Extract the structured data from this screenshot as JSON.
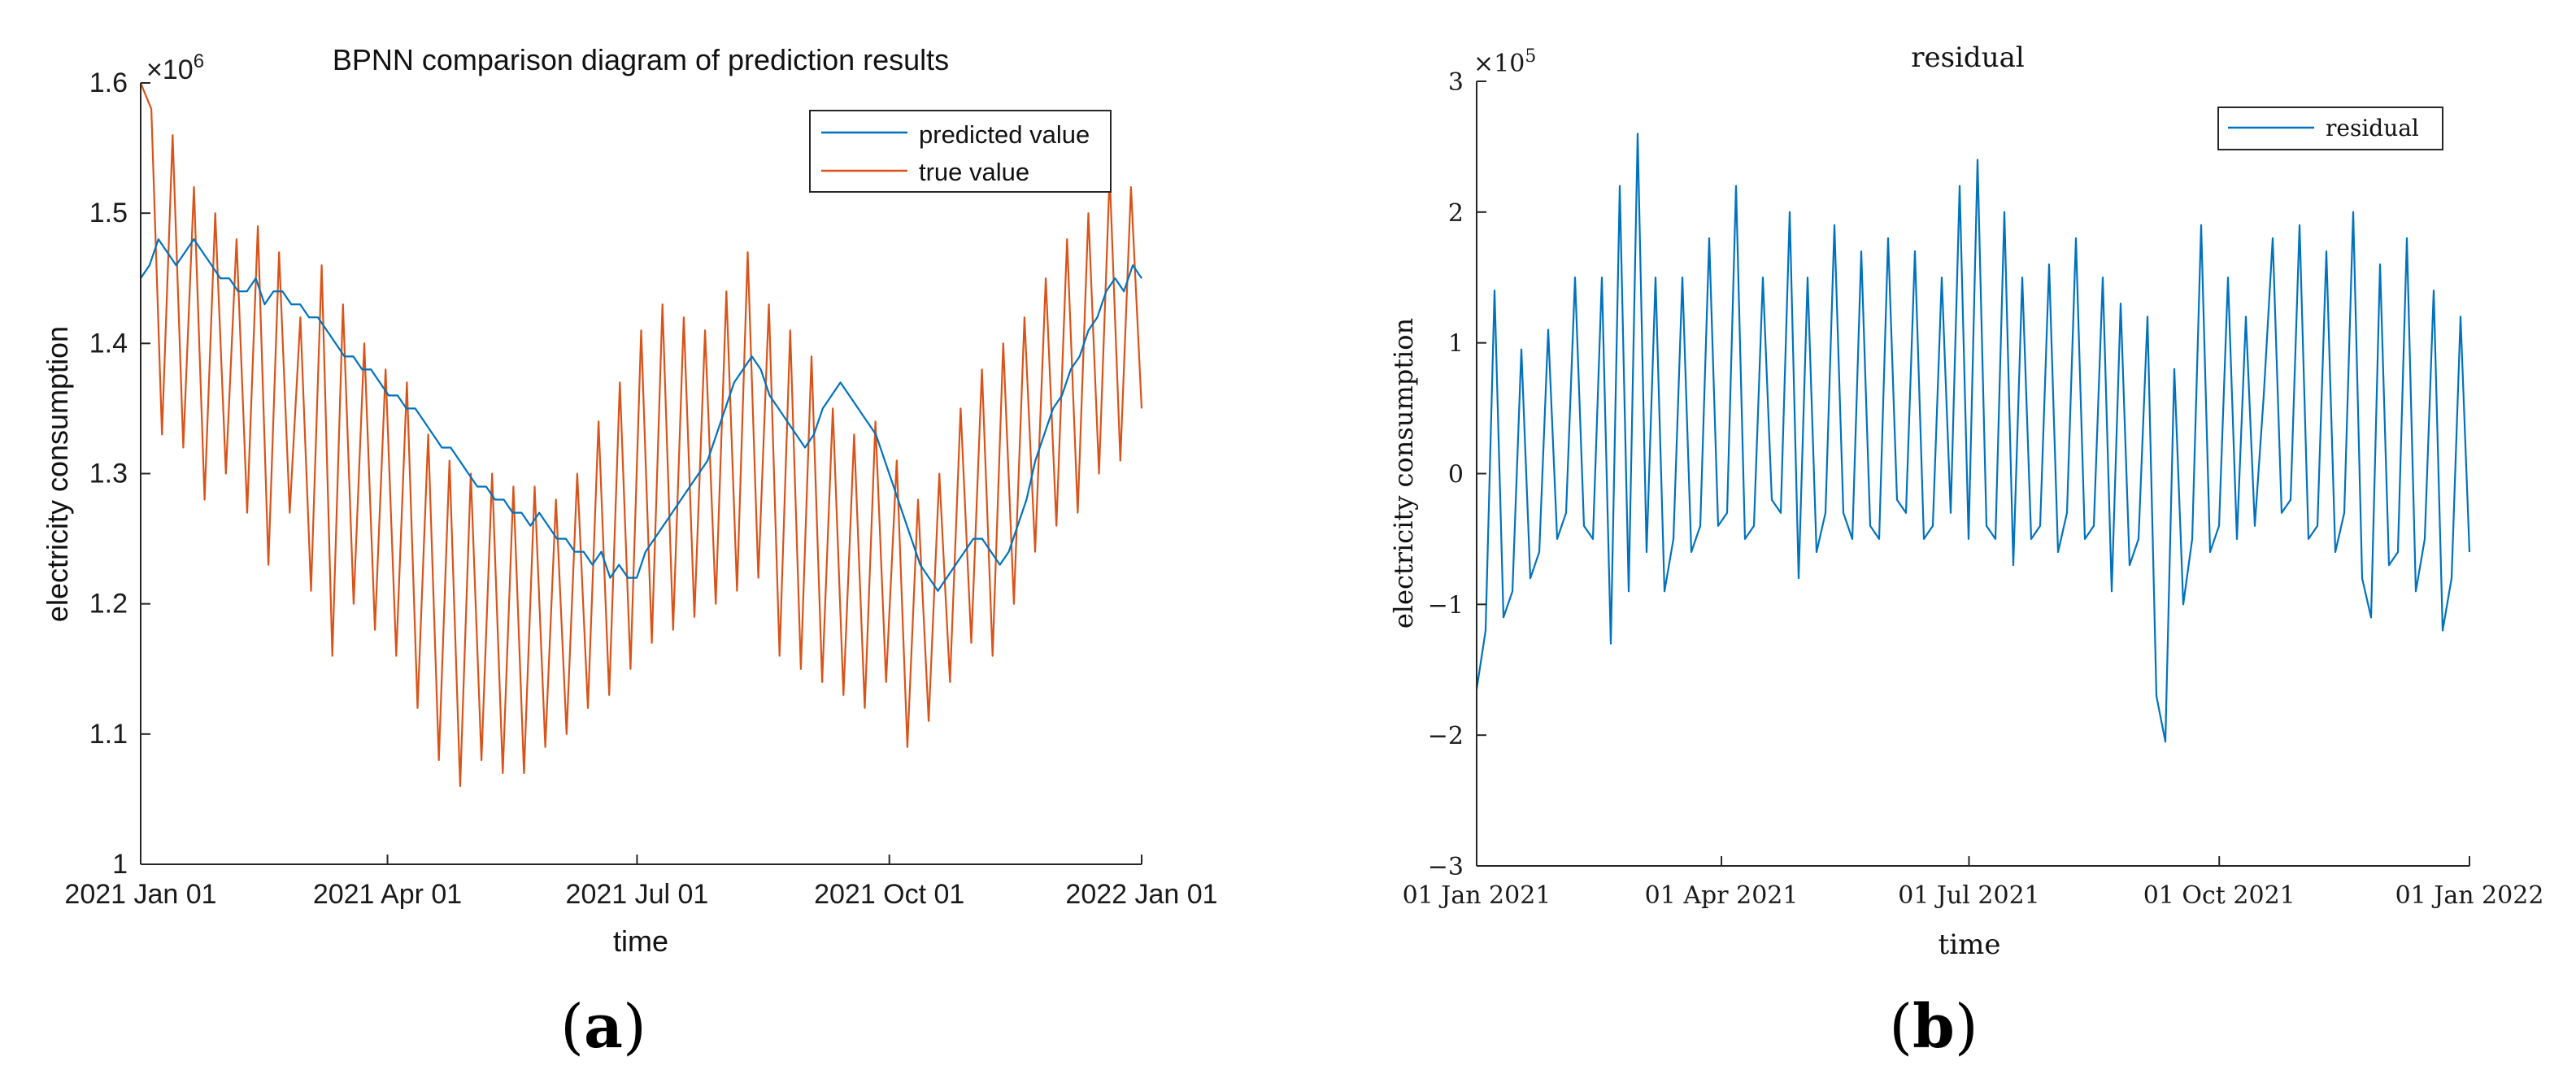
{
  "figure": {
    "panel_a_label_open": "(",
    "panel_a_label_letter": "a",
    "panel_a_label_close": ")",
    "panel_b_label_open": "(",
    "panel_b_label_letter": "b",
    "panel_b_label_close": ")"
  },
  "colors": {
    "predicted": "#0072BD",
    "true": "#D95319",
    "residual": "#0072BD",
    "axis": "#262626"
  },
  "chart_data": [
    {
      "id": "a",
      "type": "line",
      "title": "BPNN comparison diagram of prediction results",
      "xlabel": "time",
      "ylabel": "electricity consumption",
      "exponent_base": "×10",
      "exponent_power": "6",
      "x_range_days": [
        0,
        365
      ],
      "ylim": [
        1.0,
        1.6
      ],
      "yticks": [
        1.0,
        1.1,
        1.2,
        1.3,
        1.4,
        1.5,
        1.6
      ],
      "ytick_labels": [
        "1",
        "1.1",
        "1.2",
        "1.3",
        "1.4",
        "1.5",
        "1.6"
      ],
      "xticks_days": [
        0,
        90,
        181,
        273,
        365
      ],
      "xtick_labels": [
        "2021 Jan 01",
        "2021 Apr 01",
        "2021 Jul 01",
        "2021 Oct 01",
        "2022 Jan 01"
      ],
      "legend_position": "top-right",
      "series": [
        {
          "name": "predicted value",
          "color_key": "predicted",
          "values": [
            1.45,
            1.46,
            1.48,
            1.47,
            1.46,
            1.47,
            1.48,
            1.47,
            1.46,
            1.45,
            1.45,
            1.44,
            1.44,
            1.45,
            1.43,
            1.44,
            1.44,
            1.43,
            1.43,
            1.42,
            1.42,
            1.41,
            1.4,
            1.39,
            1.39,
            1.38,
            1.38,
            1.37,
            1.36,
            1.36,
            1.35,
            1.35,
            1.34,
            1.33,
            1.32,
            1.32,
            1.31,
            1.3,
            1.29,
            1.29,
            1.28,
            1.28,
            1.27,
            1.27,
            1.26,
            1.27,
            1.26,
            1.25,
            1.25,
            1.24,
            1.24,
            1.23,
            1.24,
            1.22,
            1.23,
            1.22,
            1.22,
            1.24,
            1.25,
            1.26,
            1.27,
            1.28,
            1.29,
            1.3,
            1.31,
            1.33,
            1.35,
            1.37,
            1.38,
            1.39,
            1.38,
            1.36,
            1.35,
            1.34,
            1.33,
            1.32,
            1.33,
            1.35,
            1.36,
            1.37,
            1.36,
            1.35,
            1.34,
            1.33,
            1.31,
            1.29,
            1.27,
            1.25,
            1.23,
            1.22,
            1.21,
            1.22,
            1.23,
            1.24,
            1.25,
            1.25,
            1.24,
            1.23,
            1.24,
            1.26,
            1.28,
            1.31,
            1.33,
            1.35,
            1.36,
            1.38,
            1.39,
            1.41,
            1.42,
            1.44,
            1.45,
            1.44,
            1.46,
            1.45
          ]
        },
        {
          "name": "true value",
          "color_key": "true",
          "values": [
            1.6,
            1.58,
            1.33,
            1.56,
            1.32,
            1.52,
            1.28,
            1.5,
            1.3,
            1.48,
            1.27,
            1.49,
            1.23,
            1.47,
            1.27,
            1.42,
            1.21,
            1.46,
            1.16,
            1.43,
            1.2,
            1.4,
            1.18,
            1.38,
            1.16,
            1.37,
            1.12,
            1.33,
            1.08,
            1.31,
            1.06,
            1.3,
            1.08,
            1.3,
            1.07,
            1.29,
            1.07,
            1.29,
            1.09,
            1.28,
            1.1,
            1.3,
            1.12,
            1.34,
            1.13,
            1.37,
            1.15,
            1.41,
            1.17,
            1.43,
            1.18,
            1.42,
            1.19,
            1.41,
            1.2,
            1.44,
            1.21,
            1.47,
            1.22,
            1.43,
            1.16,
            1.41,
            1.15,
            1.39,
            1.14,
            1.35,
            1.13,
            1.33,
            1.12,
            1.34,
            1.14,
            1.31,
            1.09,
            1.28,
            1.11,
            1.3,
            1.14,
            1.35,
            1.17,
            1.38,
            1.16,
            1.4,
            1.2,
            1.42,
            1.24,
            1.45,
            1.26,
            1.48,
            1.27,
            1.5,
            1.3,
            1.53,
            1.31,
            1.52,
            1.35
          ]
        }
      ]
    },
    {
      "id": "b",
      "type": "line",
      "title": "residual",
      "xlabel": "time",
      "ylabel": "electricity consumption",
      "exponent_base": "×10",
      "exponent_power": "5",
      "x_range_days": [
        0,
        365
      ],
      "ylim": [
        -3,
        3
      ],
      "yticks": [
        -3,
        -2,
        -1,
        0,
        1,
        2,
        3
      ],
      "ytick_labels": [
        "−3",
        "−2",
        "−1",
        "0",
        "1",
        "2",
        "3"
      ],
      "xticks_days": [
        0,
        90,
        181,
        273,
        365
      ],
      "xtick_labels": [
        "01 Jan 2021",
        "01 Apr 2021",
        "01 Jul 2021",
        "01 Oct 2021",
        "01 Jan 2022"
      ],
      "legend_position": "top-right",
      "series": [
        {
          "name": "residual",
          "color_key": "residual",
          "values": [
            -1.65,
            -1.2,
            1.4,
            -1.1,
            -0.9,
            0.95,
            -0.8,
            -0.6,
            1.1,
            -0.5,
            -0.3,
            1.5,
            -0.4,
            -0.5,
            1.5,
            -1.3,
            2.2,
            -0.9,
            2.6,
            -0.6,
            1.5,
            -0.9,
            -0.5,
            1.5,
            -0.6,
            -0.4,
            1.8,
            -0.4,
            -0.3,
            2.2,
            -0.5,
            -0.4,
            1.5,
            -0.2,
            -0.3,
            2.0,
            -0.8,
            1.5,
            -0.6,
            -0.3,
            1.9,
            -0.3,
            -0.5,
            1.7,
            -0.4,
            -0.5,
            1.8,
            -0.2,
            -0.3,
            1.7,
            -0.5,
            -0.4,
            1.5,
            -0.3,
            2.2,
            -0.5,
            2.4,
            -0.4,
            -0.5,
            2.0,
            -0.7,
            1.5,
            -0.5,
            -0.4,
            1.6,
            -0.6,
            -0.3,
            1.8,
            -0.5,
            -0.4,
            1.5,
            -0.9,
            1.3,
            -0.7,
            -0.5,
            1.2,
            -1.7,
            -2.05,
            0.8,
            -1.0,
            -0.5,
            1.9,
            -0.6,
            -0.4,
            1.5,
            -0.5,
            1.2,
            -0.4,
            0.6,
            1.8,
            -0.3,
            -0.2,
            1.9,
            -0.5,
            -0.4,
            1.7,
            -0.6,
            -0.3,
            2.0,
            -0.8,
            -1.1,
            1.6,
            -0.7,
            -0.6,
            1.8,
            -0.9,
            -0.5,
            1.4,
            -1.2,
            -0.8,
            1.2,
            -0.6
          ]
        }
      ]
    }
  ]
}
